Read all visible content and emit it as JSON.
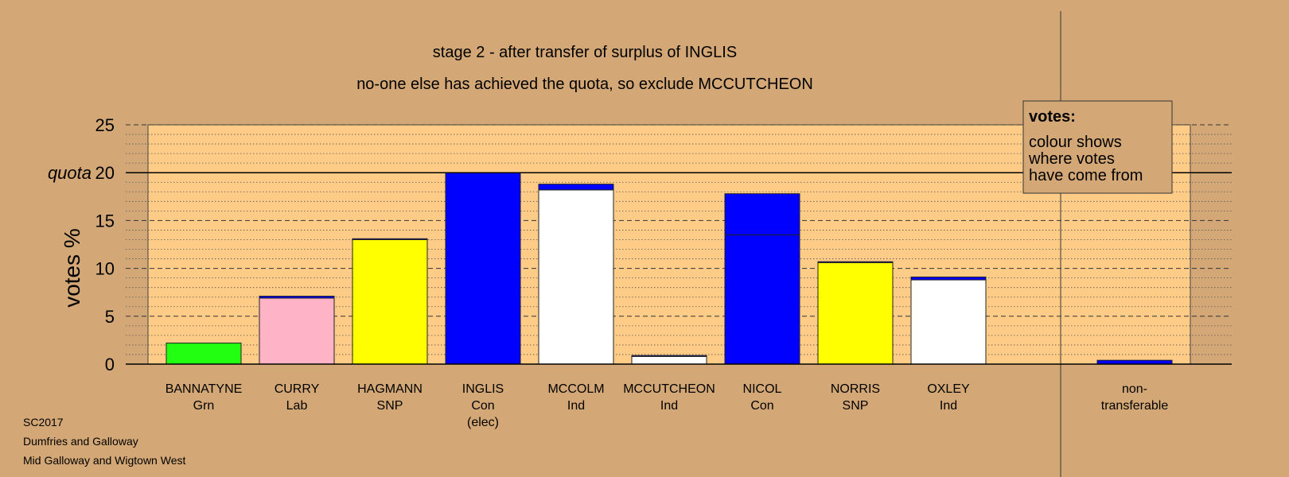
{
  "chart_data": {
    "type": "bar",
    "title": "stage 2 - after transfer of surplus of INGLIS",
    "subtitle": "no-one else has achieved the quota, so exclude MCCUTCHEON",
    "ylabel": "votes %",
    "ylim": [
      0,
      25
    ],
    "yticks": [
      0,
      5,
      10,
      15,
      20,
      25
    ],
    "quota": 20,
    "quota_label": "quota",
    "grid": true,
    "legend_position": "top-right",
    "legend": {
      "title": "votes:",
      "lines": [
        "colour shows",
        "where votes",
        "have come from"
      ]
    },
    "candidates": [
      {
        "name": "BANNATYNE",
        "party": "Grn",
        "note": "",
        "segments": [
          {
            "value": 2.2,
            "color": "#22FF11"
          }
        ]
      },
      {
        "name": "CURRY",
        "party": "Lab",
        "note": "",
        "segments": [
          {
            "value": 6.9,
            "color": "#FFB3C6"
          },
          {
            "value": 0.2,
            "color": "#0000FF"
          }
        ]
      },
      {
        "name": "HAGMANN",
        "party": "SNP",
        "note": "",
        "segments": [
          {
            "value": 13.0,
            "color": "#FFFF00"
          },
          {
            "value": 0.1,
            "color": "#0000FF"
          }
        ]
      },
      {
        "name": "INGLIS",
        "party": "Con",
        "note": "(elec)",
        "segments": [
          {
            "value": 20.0,
            "color": "#0000FF"
          }
        ]
      },
      {
        "name": "MCCOLM",
        "party": "Ind",
        "note": "",
        "segments": [
          {
            "value": 18.2,
            "color": "#FFFFFF"
          },
          {
            "value": 0.6,
            "color": "#0000FF"
          }
        ]
      },
      {
        "name": "MCCUTCHEON",
        "party": "Ind",
        "note": "",
        "segments": [
          {
            "value": 0.8,
            "color": "#FFFFFF"
          },
          {
            "value": 0.1,
            "color": "#0000FF"
          }
        ]
      },
      {
        "name": "NICOL",
        "party": "Con",
        "note": "",
        "segments": [
          {
            "value": 13.5,
            "color": "#0000FF"
          },
          {
            "value": 4.3,
            "color": "#0000FF"
          }
        ]
      },
      {
        "name": "NORRIS",
        "party": "SNP",
        "note": "",
        "segments": [
          {
            "value": 10.6,
            "color": "#FFFF00"
          },
          {
            "value": 0.1,
            "color": "#0000FF"
          }
        ]
      },
      {
        "name": "OXLEY",
        "party": "Ind",
        "note": "",
        "segments": [
          {
            "value": 8.8,
            "color": "#FFFFFF"
          },
          {
            "value": 0.3,
            "color": "#0000FF"
          }
        ]
      }
    ],
    "non_transferable": {
      "label_line1": "non-",
      "label_line2": "transferable",
      "value": 0.4,
      "color": "#0000FF"
    }
  },
  "footer": {
    "line1": "SC2017",
    "line2": "Dumfries and Galloway",
    "line3": "Mid Galloway and Wigtown West"
  },
  "colors": {
    "background": "#D4A876",
    "plot_area": "#FFCC88"
  }
}
